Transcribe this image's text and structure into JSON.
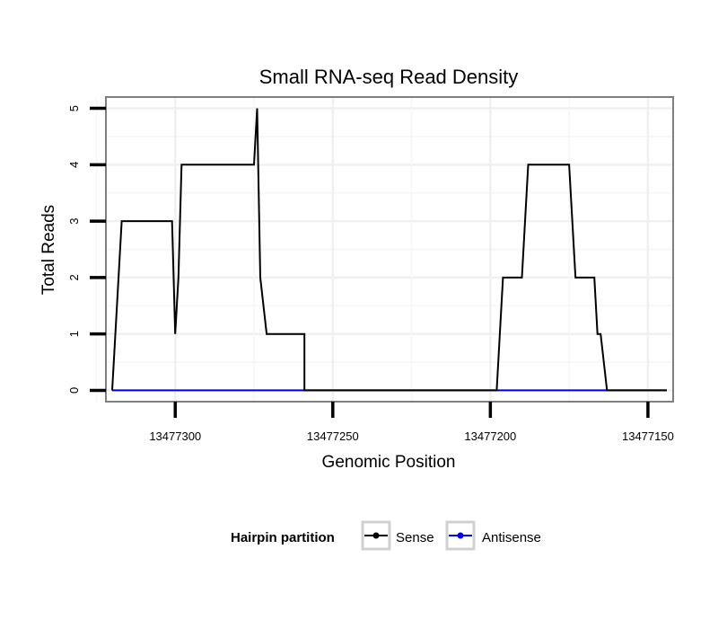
{
  "chart_data": {
    "type": "line",
    "title": "Small RNA-seq Read Density",
    "xlabel": "Genomic Position",
    "ylabel": "Total Reads",
    "x_reversed": true,
    "xlim": [
      13477322,
      13477142
    ],
    "ylim": [
      -0.2,
      5.2
    ],
    "x_ticks": [
      13477300,
      13477250,
      13477200,
      13477150
    ],
    "x_tick_labels": [
      "13477300",
      "13477250",
      "13477200",
      "13477150"
    ],
    "y_ticks": [
      0,
      1,
      2,
      3,
      4,
      5
    ],
    "y_tick_labels": [
      "0",
      "1",
      "2",
      "3",
      "4",
      "5"
    ],
    "grid": true,
    "legend": {
      "title": "Hairpin partition",
      "position": "bottom"
    },
    "series": [
      {
        "name": "Sense",
        "color": "#000000",
        "x": [
          13477320,
          13477317,
          13477301,
          13477300,
          13477299,
          13477298,
          13477275,
          13477274,
          13477273,
          13477271,
          13477259,
          13477259,
          13477198,
          13477196,
          13477190,
          13477188,
          13477175,
          13477173,
          13477167,
          13477166,
          13477165,
          13477163,
          13477144
        ],
        "values": [
          0,
          3,
          3,
          1,
          2,
          4,
          4,
          5,
          2,
          1,
          1,
          0,
          0,
          2,
          2,
          4,
          4,
          2,
          2,
          1,
          1,
          0,
          0
        ]
      },
      {
        "name": "Antisense",
        "color": "#0000ff",
        "x": [
          13477320,
          13477144
        ],
        "values": [
          0,
          0
        ]
      }
    ]
  }
}
